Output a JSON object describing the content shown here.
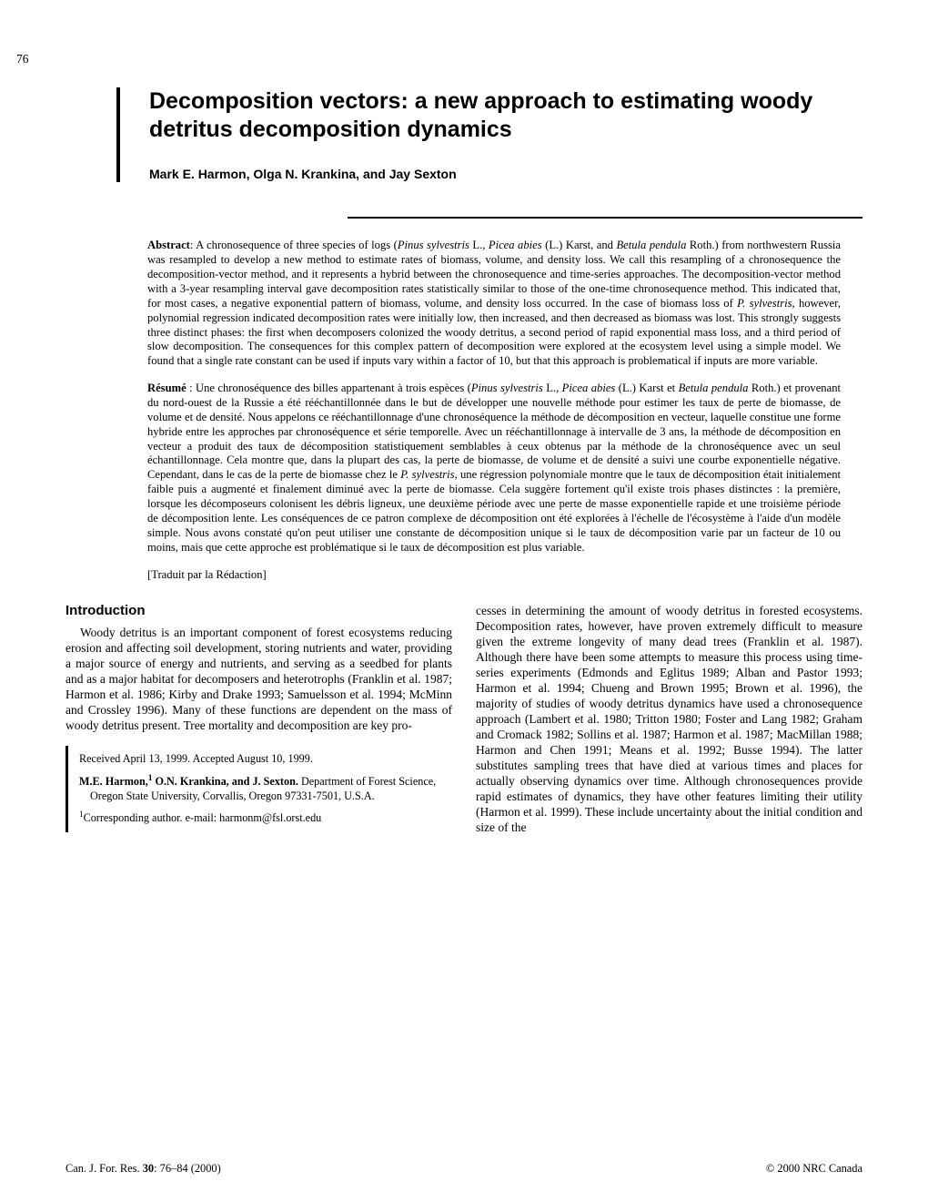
{
  "page_number": "76",
  "title": "Decomposition vectors: a new approach to estimating woody detritus decomposition dynamics",
  "authors": "Mark E. Harmon, Olga N. Krankina, and Jay Sexton",
  "abstract_label": "Abstract",
  "abstract_text": ": A chronosequence of three species of logs (",
  "abstract_sp1": "Pinus sylvestris",
  "abstract_mid1": " L., ",
  "abstract_sp2": "Picea abies",
  "abstract_mid2": " (L.) Karst, and ",
  "abstract_sp3": "Betula pendula",
  "abstract_rest": " Roth.) from northwestern Russia was resampled to develop a new method to estimate rates of biomass, volume, and density loss. We call this resampling of a chronosequence the decomposition-vector method, and it represents a hybrid between the chronosequence and time-series approaches. The decomposition-vector method with a 3-year resampling interval gave decomposition rates statistically similar to those of the one-time chronosequence method. This indicated that, for most cases, a negative exponential pattern of biomass, volume, and density loss occurred. In the case of biomass loss of ",
  "abstract_sp4": "P. sylvestris",
  "abstract_rest2": ", however, polynomial regression indicated decomposition rates were initially low, then increased, and then decreased as biomass was lost. This strongly suggests three distinct phases: the first when decomposers colonized the woody detritus, a second period of rapid exponential mass loss, and a third period of slow decomposition. The consequences for this complex pattern of decomposition were explored at the ecosystem level using a simple model. We found that a single rate constant can be used if inputs vary within a factor of 10, but that this approach is problematical if inputs are more variable.",
  "resume_label": "Résumé",
  "resume_a": " : Une chronoséquence des billes appartenant à trois espèces (",
  "resume_sp1": "Pinus sylvestris",
  "resume_mid1": " L., ",
  "resume_sp2": "Picea abies",
  "resume_mid2": " (L.) Karst et ",
  "resume_sp3": "Betula pendula",
  "resume_rest": " Roth.) et provenant du nord-ouest de la Russie a été rééchantillonnée dans le but de développer une nouvelle méthode pour estimer les taux de perte de biomasse, de volume et de densité. Nous appelons ce rééchantillonnage d'une chronoséquence la méthode de décomposition en vecteur, laquelle constitue une forme hybride entre les approches par chronoséquence et série temporelle. Avec un rééchantillonnage à intervalle de 3 ans, la méthode de décomposition en vecteur a produit des taux de décomposition statistiquement semblables à ceux obtenus par la méthode de la chronoséquence avec un seul échantillonnage. Cela montre que, dans la plupart des cas, la perte de biomasse, de volume et de densité a suivi une courbe exponentielle négative. Cependant, dans le cas de la perte de biomasse chez le ",
  "resume_sp4": "P. sylvestris",
  "resume_rest2": ", une régression polynomiale montre que le taux de décomposition était initialement faible puis a augmenté et finalement diminué avec la perte de biomasse. Cela suggère fortement qu'il existe trois phases distinctes : la première, lorsque les décomposeurs colonisent les débris ligneux, une deuxième période avec une perte de masse exponentielle rapide et une troisième période de décomposition lente. Les conséquences de ce patron complexe de décomposition ont été explorées à l'échelle de l'écosystème à l'aide d'un modèle simple. Nous avons constaté qu'on peut utiliser une constante de décomposition unique si le taux de décomposition varie par un facteur de 10 ou moins, mais que cette approche est problématique si le taux de décomposition est plus variable.",
  "translator": "[Traduit par la Rédaction]",
  "intro_heading": "Introduction",
  "intro_p1": "Woody detritus is an important component of forest ecosystems reducing erosion and affecting soil development, storing nutrients and water, providing a major source of energy and nutrients, and serving as a seedbed for plants and as a major habitat for decomposers and heterotrophs (Franklin et al. 1987; Harmon et al. 1986; Kirby and Drake 1993; Samuelsson et al. 1994; McMinn and Crossley 1996). Many of these functions are dependent on the mass of woody detritus present. Tree mortality and decomposition are key pro-",
  "col2_text": "cesses in determining the amount of woody detritus in forested ecosystems. Decomposition rates, however, have proven extremely difficult to measure given the extreme longevity of many dead trees (Franklin et al. 1987). Although there have been some attempts to measure this process using time-series experiments (Edmonds and Eglitus 1989; Alban and Pastor 1993; Harmon et al. 1994; Chueng and Brown 1995; Brown et al. 1996), the majority of studies of woody detritus dynamics have used a chronosequence approach (Lambert et al. 1980; Tritton 1980; Foster and Lang 1982; Graham and Cromack 1982; Sollins et al. 1987; Harmon et al. 1987; MacMillan 1988; Harmon and Chen 1991; Means et al. 1992; Busse 1994). The latter substitutes sampling trees that have died at various times and places for actually observing dynamics over time. Although chronosequences provide rapid estimates of dynamics, they have other features limiting their utility (Harmon et al. 1999). These include uncertainty about the initial condition and size of the",
  "received": "Received April 13, 1999. Accepted August 10, 1999.",
  "affil_bold": "M.E. Harmon,",
  "affil_sup": "1",
  "affil_bold2": " O.N. Krankina, and J. Sexton.",
  "affil_rest": " Department of Forest Science, Oregon State University, Corvallis, Oregon 97331-7501, U.S.A.",
  "corr_sup": "1",
  "corr": "Corresponding author. e-mail: harmonm@fsl.orst.edu",
  "footer_left": "Can. J. For. Res. ",
  "footer_vol": "30",
  "footer_left2": ": 76–84 (2000)",
  "footer_right": "© 2000 NRC Canada"
}
